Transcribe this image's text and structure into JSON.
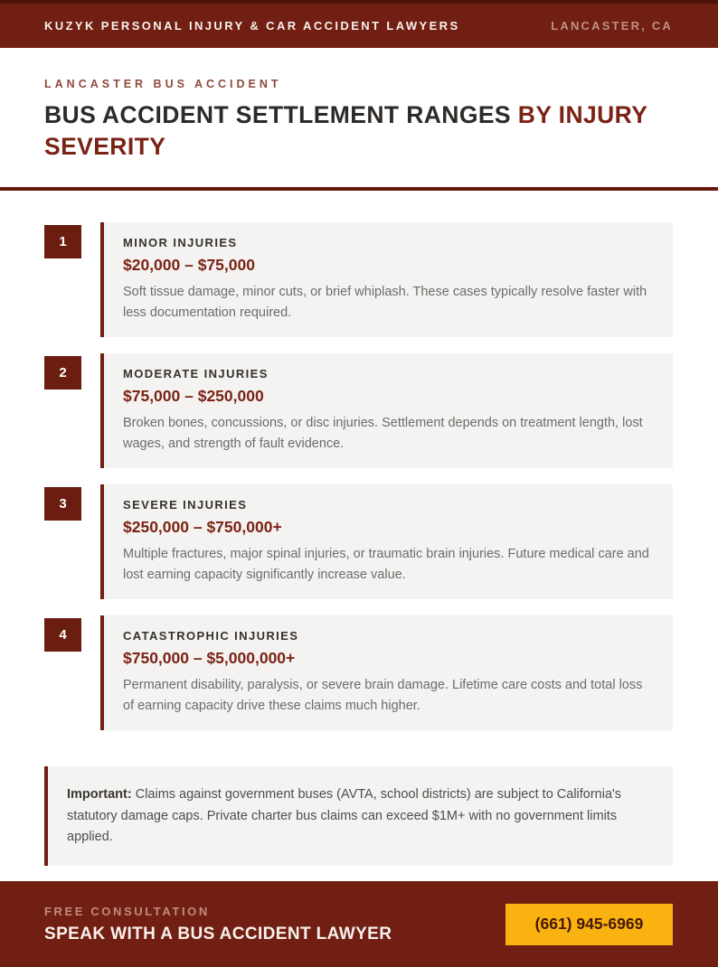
{
  "header": {
    "brand": "KUZYK PERSONAL INJURY & CAR ACCIDENT LAWYERS",
    "location": "LANCASTER, CA"
  },
  "hero": {
    "eyebrow": "LANCASTER BUS ACCIDENT",
    "title_dark": "BUS ACCIDENT SETTLEMENT RANGES",
    "title_accent": "BY INJURY SEVERITY"
  },
  "items": [
    {
      "number": "1",
      "title": "MINOR INJURIES",
      "range": "$20,000 – $75,000",
      "description": "Soft tissue damage, minor cuts, or brief whiplash. These cases typically resolve faster with less documentation required."
    },
    {
      "number": "2",
      "title": "MODERATE INJURIES",
      "range": "$75,000 – $250,000",
      "description": "Broken bones, concussions, or disc injuries. Settlement depends on treatment length, lost wages, and strength of fault evidence."
    },
    {
      "number": "3",
      "title": "SEVERE INJURIES",
      "range": "$250,000 – $750,000+",
      "description": "Multiple fractures, major spinal injuries, or traumatic brain injuries. Future medical care and lost earning capacity significantly increase value."
    },
    {
      "number": "4",
      "title": "CATASTROPHIC INJURIES",
      "range": "$750,000 – $5,000,000+",
      "description": "Permanent disability, paralysis, or severe brain damage. Lifetime care costs and total loss of earning capacity drive these claims much higher."
    }
  ],
  "note": {
    "label": "Important:",
    "text": "Claims against government buses (AVTA, school districts) are subject to California's statutory damage caps. Private charter bus claims can exceed $1M+ with no government limits applied."
  },
  "footer": {
    "eyebrow": "FREE CONSULTATION",
    "headline": "SPEAK WITH A BUS ACCIDENT LAWYER",
    "phone": "(661) 945-6969"
  },
  "colors": {
    "maroon_bg": "#711F12",
    "maroon_border_top": "#4E130A",
    "accent_red": "#7B2315",
    "card_bg": "#F4F3F1",
    "yellow": "#F9B20F",
    "button_text": "#461807",
    "muted_rose": "#C08C80"
  }
}
